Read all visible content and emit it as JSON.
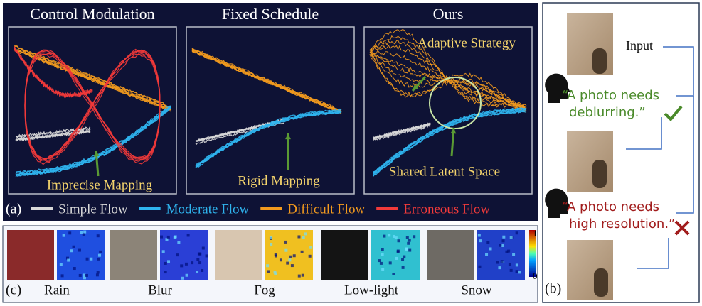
{
  "panel_a": {
    "label": "(a)",
    "subpanels": [
      {
        "title": "Control Modulation",
        "annotation": "Imprecise Mapping"
      },
      {
        "title": "Fixed Schedule",
        "annotation": "Rigid Mapping"
      },
      {
        "title": "Ours",
        "annotation": "Adaptive Strategy",
        "annotation_2": "Shared Latent Space"
      }
    ],
    "legend": [
      {
        "name": "Simple Flow",
        "color": "#d9d9d9"
      },
      {
        "name": "Moderate Flow",
        "color": "#2fb4ee"
      },
      {
        "name": "Difficult Flow",
        "color": "#f29a1e"
      },
      {
        "name": "Erroneous Flow",
        "color": "#f23a3a"
      }
    ]
  },
  "panel_b": {
    "label": "(b)",
    "input": "Input",
    "prompts": [
      {
        "lines": [
          "“A photo needs",
          "deblurring.”"
        ],
        "color": "#4a8a2a"
      },
      {
        "lines": [
          "“A photo needs",
          "high resolution.”"
        ],
        "color": "#a11c1c"
      }
    ]
  },
  "panel_c": {
    "label": "(c)",
    "tasks": [
      "Rain",
      "Blur",
      "Fog",
      "Low-light",
      "Snow"
    ],
    "colorbar": {
      "max": "1",
      "min": "0"
    }
  }
}
